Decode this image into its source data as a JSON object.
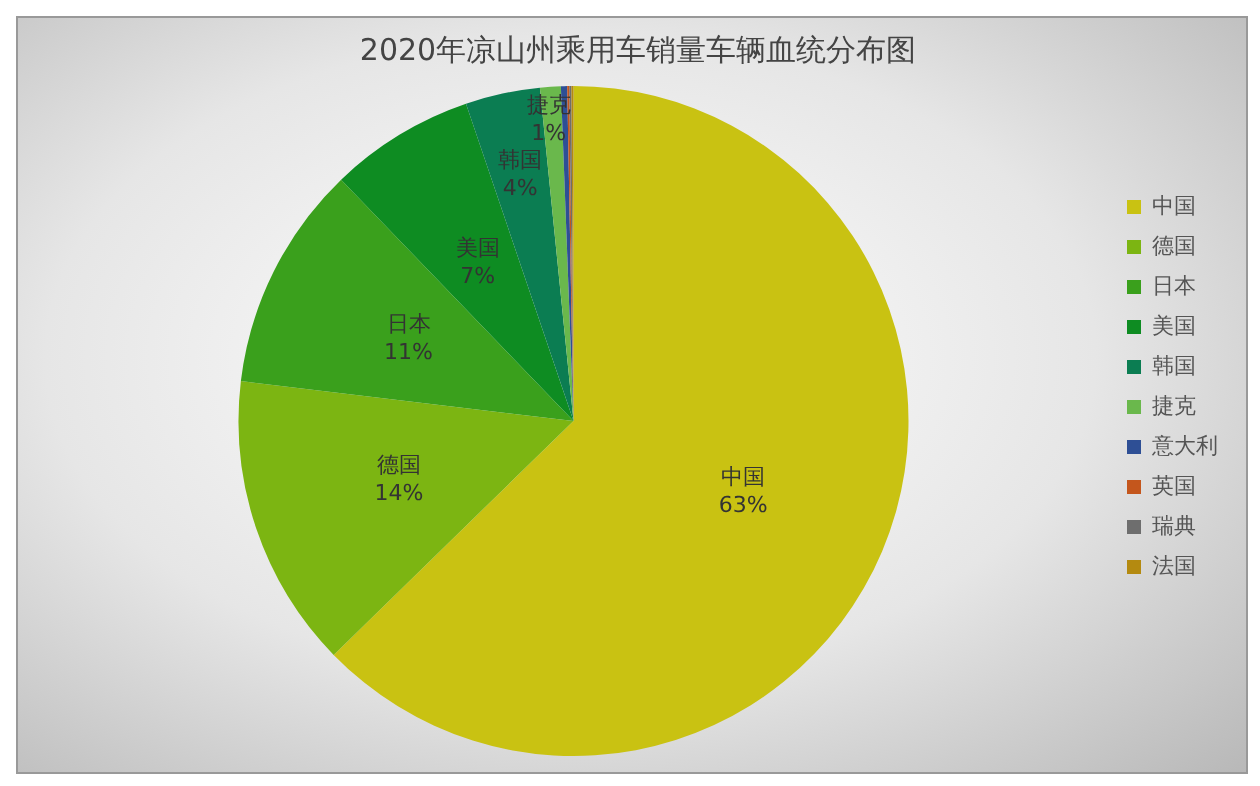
{
  "chart_data": {
    "type": "pie",
    "title": "2020年凉山州乘用车销量车辆血统分布图",
    "categories": [
      "中国",
      "德国",
      "日本",
      "美国",
      "韩国",
      "捷克",
      "意大利",
      "英国",
      "瑞典",
      "法国"
    ],
    "values": [
      62.7,
      14.2,
      10.9,
      7.0,
      3.6,
      1.0,
      0.3,
      0.1,
      0.1,
      0.1
    ],
    "value_labels": [
      "63%",
      "14%",
      "11%",
      "7%",
      "4%",
      "1%",
      null,
      null,
      null,
      null
    ],
    "colors": [
      "#c9c212",
      "#7cb512",
      "#3aa01c",
      "#0e8c22",
      "#0b7d52",
      "#6ab84c",
      "#2e4f95",
      "#c4561c",
      "#6e6e6e",
      "#b48a10"
    ],
    "legend": "right"
  }
}
